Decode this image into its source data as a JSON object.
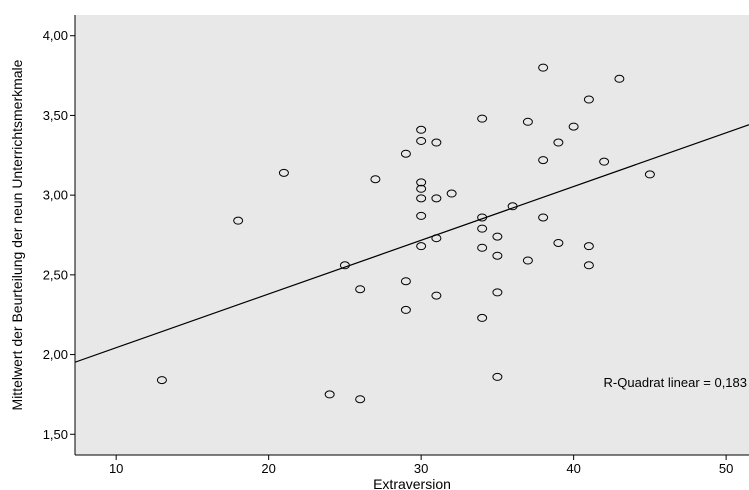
{
  "chart_data": {
    "type": "scatter",
    "title": "",
    "xlabel": "Extraversion",
    "ylabel": "Mittelwert der Beurteilung der neun Unterrichtsmerkmale",
    "xlim": [
      7.3,
      51.5
    ],
    "ylim": [
      1.37,
      4.13
    ],
    "x_ticks": [
      10,
      20,
      30,
      40,
      50
    ],
    "x_tick_labels": [
      "10",
      "20",
      "30",
      "40",
      "50"
    ],
    "y_ticks": [
      1.5,
      2.0,
      2.5,
      3.0,
      3.5,
      4.0
    ],
    "y_tick_labels": [
      "1,50",
      "2,00",
      "2,50",
      "3,00",
      "3,50",
      "4,00"
    ],
    "grid": false,
    "legend": "none",
    "colors": {
      "plot_background": "#e8e8e8",
      "marker_stroke": "#000000",
      "fit_line": "#000000"
    },
    "fit_line": {
      "type": "linear",
      "intercept": 1.706,
      "slope": 0.0337
    },
    "annotation": "R-Quadrat linear = 0,183",
    "points": [
      {
        "x": 13,
        "y": 1.84
      },
      {
        "x": 18,
        "y": 2.84
      },
      {
        "x": 21,
        "y": 3.14
      },
      {
        "x": 24,
        "y": 1.75
      },
      {
        "x": 25,
        "y": 2.56
      },
      {
        "x": 26,
        "y": 2.41
      },
      {
        "x": 26,
        "y": 1.72
      },
      {
        "x": 27,
        "y": 3.1
      },
      {
        "x": 29,
        "y": 3.26
      },
      {
        "x": 29,
        "y": 2.46
      },
      {
        "x": 29,
        "y": 2.28
      },
      {
        "x": 30,
        "y": 3.41
      },
      {
        "x": 30,
        "y": 3.34
      },
      {
        "x": 30,
        "y": 3.08
      },
      {
        "x": 30,
        "y": 3.04
      },
      {
        "x": 30,
        "y": 2.98
      },
      {
        "x": 30,
        "y": 2.87
      },
      {
        "x": 30,
        "y": 2.68
      },
      {
        "x": 31,
        "y": 3.33
      },
      {
        "x": 31,
        "y": 2.98
      },
      {
        "x": 31,
        "y": 2.73
      },
      {
        "x": 31,
        "y": 2.37
      },
      {
        "x": 32,
        "y": 3.01
      },
      {
        "x": 34,
        "y": 3.48
      },
      {
        "x": 34,
        "y": 2.86
      },
      {
        "x": 34,
        "y": 2.79
      },
      {
        "x": 34,
        "y": 2.67
      },
      {
        "x": 34,
        "y": 2.23
      },
      {
        "x": 35,
        "y": 2.74
      },
      {
        "x": 35,
        "y": 2.62
      },
      {
        "x": 35,
        "y": 2.39
      },
      {
        "x": 35,
        "y": 1.86
      },
      {
        "x": 36,
        "y": 2.93
      },
      {
        "x": 37,
        "y": 3.46
      },
      {
        "x": 37,
        "y": 2.59
      },
      {
        "x": 38,
        "y": 3.8
      },
      {
        "x": 38,
        "y": 3.22
      },
      {
        "x": 38,
        "y": 2.86
      },
      {
        "x": 39,
        "y": 3.33
      },
      {
        "x": 39,
        "y": 2.7
      },
      {
        "x": 40,
        "y": 3.43
      },
      {
        "x": 41,
        "y": 3.6
      },
      {
        "x": 41,
        "y": 2.68
      },
      {
        "x": 41,
        "y": 2.56
      },
      {
        "x": 42,
        "y": 3.21
      },
      {
        "x": 43,
        "y": 3.73
      },
      {
        "x": 45,
        "y": 3.13
      }
    ]
  }
}
